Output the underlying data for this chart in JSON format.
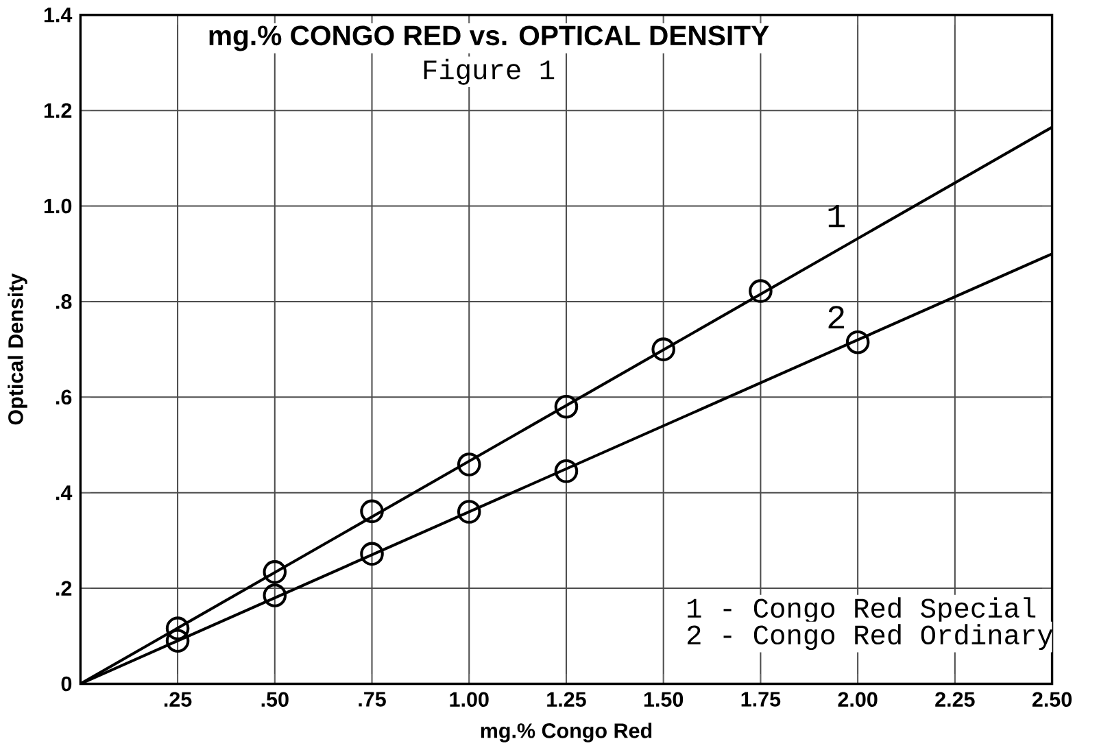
{
  "chart_data": {
    "type": "line",
    "title": "mg.% CONGO RED vs. OPTICAL DENSITY",
    "subtitle": "Figure 1",
    "xlabel": "mg.% Congo Red",
    "ylabel": "Optical Density",
    "xlim": [
      0,
      2.5
    ],
    "ylim": [
      0,
      1.4
    ],
    "xticks": [
      {
        "value": 0.25,
        "label": ".25"
      },
      {
        "value": 0.5,
        "label": ".50"
      },
      {
        "value": 0.75,
        "label": ".75"
      },
      {
        "value": 1.0,
        "label": "1.00"
      },
      {
        "value": 1.25,
        "label": "1.25"
      },
      {
        "value": 1.5,
        "label": "1.50"
      },
      {
        "value": 1.75,
        "label": "1.75"
      },
      {
        "value": 2.0,
        "label": "2.00"
      },
      {
        "value": 2.25,
        "label": "2.25"
      },
      {
        "value": 2.5,
        "label": "2.50"
      }
    ],
    "yticks": [
      0,
      {
        "value": 0.2,
        "label": ".2"
      },
      {
        "value": 0.4,
        "label": ".4"
      },
      {
        "value": 0.6,
        "label": ".6"
      },
      {
        "value": 0.8,
        "label": ".8"
      },
      {
        "value": 1.0,
        "label": "1.0"
      },
      {
        "value": 1.2,
        "label": "1.2"
      },
      {
        "value": 1.4,
        "label": "1.4"
      }
    ],
    "grid": true,
    "legend": false,
    "series": [
      {
        "name": "1",
        "color": "#000000",
        "marker": "none",
        "x": [
          0,
          2.5
        ],
        "values": [
          0,
          1.165
        ]
      },
      {
        "name": "2",
        "color": "#000000",
        "marker": "none",
        "x": [
          0,
          2.5
        ],
        "values": [
          0,
          0.9
        ]
      },
      {
        "type": "scatter",
        "color": "#000000",
        "marker": "circle",
        "x": [
          0.25,
          0.5,
          0.75,
          1.0,
          1.25,
          1.5,
          1.75
        ],
        "values": [
          0.116,
          0.234,
          0.361,
          0.459,
          0.58,
          0.7,
          0.822
        ]
      },
      {
        "type": "scatter",
        "color": "#000000",
        "marker": "circle",
        "x": [
          0.25,
          0.5,
          0.75,
          1.0,
          1.25,
          2.0
        ],
        "values": [
          0.09,
          0.185,
          0.272,
          0.36,
          0.445,
          0.715
        ]
      }
    ],
    "annotations": [
      "1 - Congo Red Special",
      "2 - Congo Red Ordinary"
    ]
  }
}
